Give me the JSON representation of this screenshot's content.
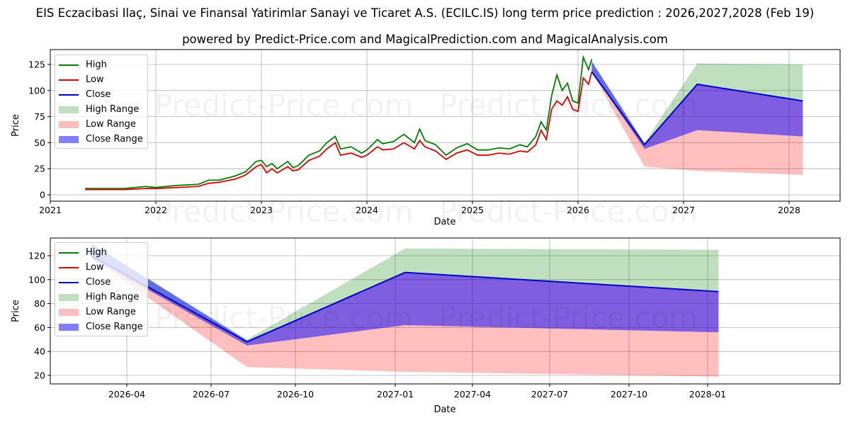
{
  "title": "EIS Eczacibasi Ilaç, Sinai ve Finansal Yatirimlar Sanayi ve Ticaret A.S. (ECILC.IS) long term price prediction : 2026,2027,2028 (Feb 19)",
  "subtitle": "powered by Predict-Price.com and MagicalPrediction.com and MagicalAnalysis.com",
  "watermark": "Predict-Price.com",
  "legend": {
    "items": [
      {
        "label": "High",
        "type": "line",
        "color": "#008000"
      },
      {
        "label": "Low",
        "type": "line",
        "color": "#e00000"
      },
      {
        "label": "Close",
        "type": "line",
        "color": "#0000cc"
      },
      {
        "label": "High Range",
        "type": "patch",
        "color": "#bfdfbf"
      },
      {
        "label": "Low Range",
        "type": "patch",
        "color": "#ffbfbf"
      },
      {
        "label": "Close Range",
        "type": "patch",
        "color": "#7f7fff"
      }
    ]
  },
  "chart_data": [
    {
      "type": "line",
      "title": "Long term view",
      "xlabel": "Date",
      "ylabel": "Price",
      "xticks": [
        "2021",
        "2022",
        "2023",
        "2024",
        "2025",
        "2026",
        "2027",
        "2028"
      ],
      "yticks": [
        0,
        25,
        50,
        75,
        100,
        125
      ],
      "xlim": [
        2021.0,
        2028.5
      ],
      "ylim": [
        -5,
        138
      ],
      "grid": true,
      "legend_position": "upper left",
      "historical": {
        "x": [
          2021.33,
          2021.5,
          2021.7,
          2021.9,
          2022.0,
          2022.2,
          2022.4,
          2022.5,
          2022.6,
          2022.75,
          2022.85,
          2022.95,
          2023.0,
          2023.05,
          2023.1,
          2023.15,
          2023.25,
          2023.3,
          2023.35,
          2023.45,
          2023.55,
          2023.62,
          2023.7,
          2023.75,
          2023.85,
          2023.95,
          2024.0,
          2024.1,
          2024.15,
          2024.25,
          2024.35,
          2024.45,
          2024.5,
          2024.55,
          2024.65,
          2024.75,
          2024.85,
          2024.95,
          2025.05,
          2025.15,
          2025.25,
          2025.35,
          2025.45,
          2025.52,
          2025.6,
          2025.65,
          2025.7,
          2025.75,
          2025.8,
          2025.85,
          2025.9,
          2025.95,
          2026.0,
          2026.05,
          2026.1,
          2026.13
        ],
        "high": [
          6,
          6,
          6,
          8,
          7,
          9,
          10,
          14,
          14,
          18,
          22,
          32,
          33,
          27,
          30,
          25,
          32,
          26,
          28,
          38,
          42,
          50,
          56,
          44,
          46,
          40,
          43,
          53,
          49,
          51,
          58,
          50,
          63,
          52,
          48,
          38,
          45,
          49,
          43,
          43,
          45,
          44,
          48,
          46,
          56,
          70,
          62,
          95,
          115,
          100,
          107,
          90,
          88,
          132,
          120,
          130
        ],
        "low": [
          5,
          5,
          5,
          6,
          6,
          7,
          8,
          11,
          12,
          15,
          19,
          27,
          29,
          21,
          25,
          21,
          27,
          23,
          24,
          33,
          37,
          44,
          50,
          38,
          40,
          36,
          38,
          46,
          43,
          44,
          50,
          44,
          52,
          46,
          42,
          34,
          40,
          43,
          38,
          38,
          40,
          39,
          42,
          41,
          48,
          62,
          53,
          82,
          90,
          86,
          94,
          82,
          80,
          112,
          106,
          118
        ]
      },
      "forecast": {
        "x": [
          2026.13,
          2026.63,
          2027.13,
          2028.13
        ],
        "close": [
          118,
          48,
          106,
          90
        ],
        "close_range_upper": [
          128,
          49,
          106,
          90
        ],
        "close_range_lower": [
          118,
          44,
          62,
          56
        ],
        "high_range_upper": [
          128,
          50,
          126,
          125
        ],
        "low_range_lower": [
          118,
          27,
          23,
          19
        ]
      }
    },
    {
      "type": "line",
      "title": "Forecast detail",
      "xlabel": "Date",
      "ylabel": "Price",
      "xticks": [
        "2026-04",
        "2026-07",
        "2026-10",
        "2027-01",
        "2027-04",
        "2027-07",
        "2027-10",
        "2028-01"
      ],
      "yticks": [
        20,
        40,
        60,
        80,
        100,
        120
      ],
      "ylim": [
        13,
        134
      ],
      "grid": true,
      "legend_position": "upper left",
      "forecast": {
        "x": [
          "2026-02-19",
          "2026-08-19",
          "2027-02-19",
          "2028-02-19"
        ],
        "close": [
          120,
          48,
          106,
          90
        ],
        "close_range_upper": [
          130,
          49,
          106,
          90
        ],
        "close_range_lower": [
          118,
          45,
          62,
          56
        ],
        "high_range_upper": [
          130,
          50,
          126,
          125
        ],
        "low_range_lower": [
          118,
          27,
          23,
          19
        ]
      }
    }
  ]
}
